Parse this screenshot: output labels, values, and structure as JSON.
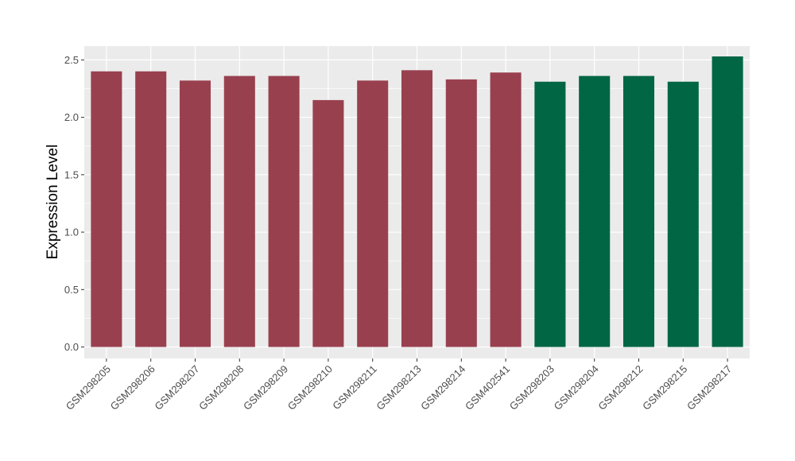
{
  "chart_data": {
    "type": "bar",
    "title": "",
    "xlabel": "",
    "ylabel": "Expression Level",
    "ylim": [
      -0.1,
      2.62
    ],
    "yticks": [
      0.0,
      0.5,
      1.0,
      1.5,
      2.0,
      2.5
    ],
    "ytick_labels": [
      "0.0",
      "0.5",
      "1.0",
      "1.5",
      "2.0",
      "2.5"
    ],
    "grid": true,
    "legend": "none",
    "categories": [
      "GSM298205",
      "GSM298206",
      "GSM298207",
      "GSM298208",
      "GSM298209",
      "GSM298210",
      "GSM298211",
      "GSM298213",
      "GSM298214",
      "GSM402541",
      "GSM298203",
      "GSM298204",
      "GSM298212",
      "GSM298215",
      "GSM298217"
    ],
    "values": [
      2.4,
      2.4,
      2.32,
      2.36,
      2.36,
      2.15,
      2.32,
      2.41,
      2.33,
      2.39,
      2.31,
      2.36,
      2.36,
      2.31,
      2.53
    ],
    "groups": [
      0,
      0,
      0,
      0,
      0,
      0,
      0,
      0,
      0,
      0,
      1,
      1,
      1,
      1,
      1
    ],
    "group_colors": [
      "#99404f",
      "#006644"
    ],
    "panel_background": "#ebebeb",
    "grid_color": "#ffffff"
  }
}
